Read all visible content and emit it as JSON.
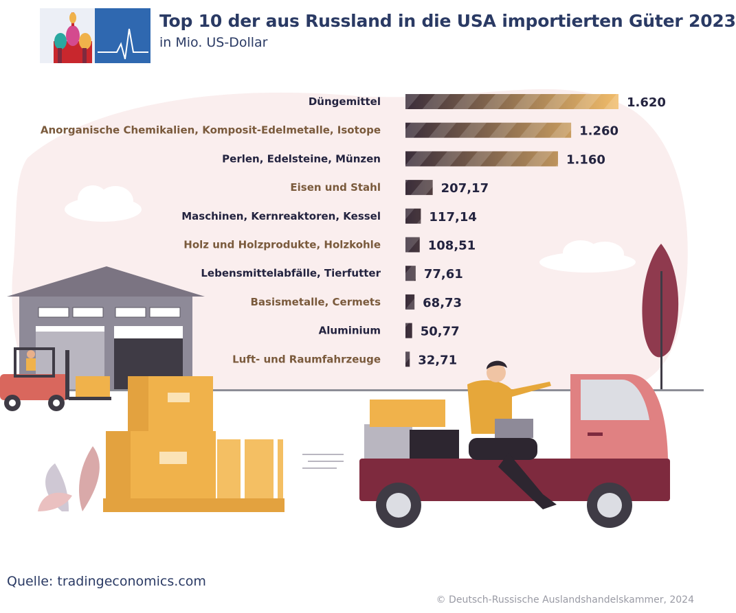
{
  "colors": {
    "label_dark": "#23233f",
    "label_brown": "#7a5a3c",
    "bar_start": "#3a2d3a",
    "bar_end": "#f1bc6a"
  },
  "chart_data": {
    "type": "bar",
    "orientation": "horizontal",
    "title": "Top 10 der aus Russland in die USA importierten Güter 2023",
    "subtitle": "in Mio. US-Dollar",
    "categories": [
      "Düngemittel",
      "Anorganische Chemikalien, Komposit-Edelmetalle, Isotope",
      "Perlen, Edelsteine, Münzen",
      "Eisen und Stahl",
      "Maschinen, Kernreaktoren, Kessel",
      "Holz und Holzprodukte, Holzkohle",
      "Lebensmittelabfälle, Tierfutter",
      "Basismetalle, Cermets",
      "Aluminium",
      "Luft- und Raumfahrzeuge"
    ],
    "values": [
      1620,
      1260,
      1160,
      207.17,
      117.14,
      108.51,
      77.61,
      68.73,
      50.77,
      32.71
    ],
    "value_labels": [
      "1.620",
      "1.260",
      "1.160",
      "207,17",
      "117,14",
      "108,51",
      "77,61",
      "68,73",
      "50,77",
      "32,71"
    ],
    "xlim": [
      0,
      1620
    ],
    "grid": false,
    "legend": "none"
  },
  "footer": {
    "source": "Quelle: tradingeconomics.com",
    "copyright": "© Deutsch-Russische Auslandshandelskammer, 2024"
  }
}
